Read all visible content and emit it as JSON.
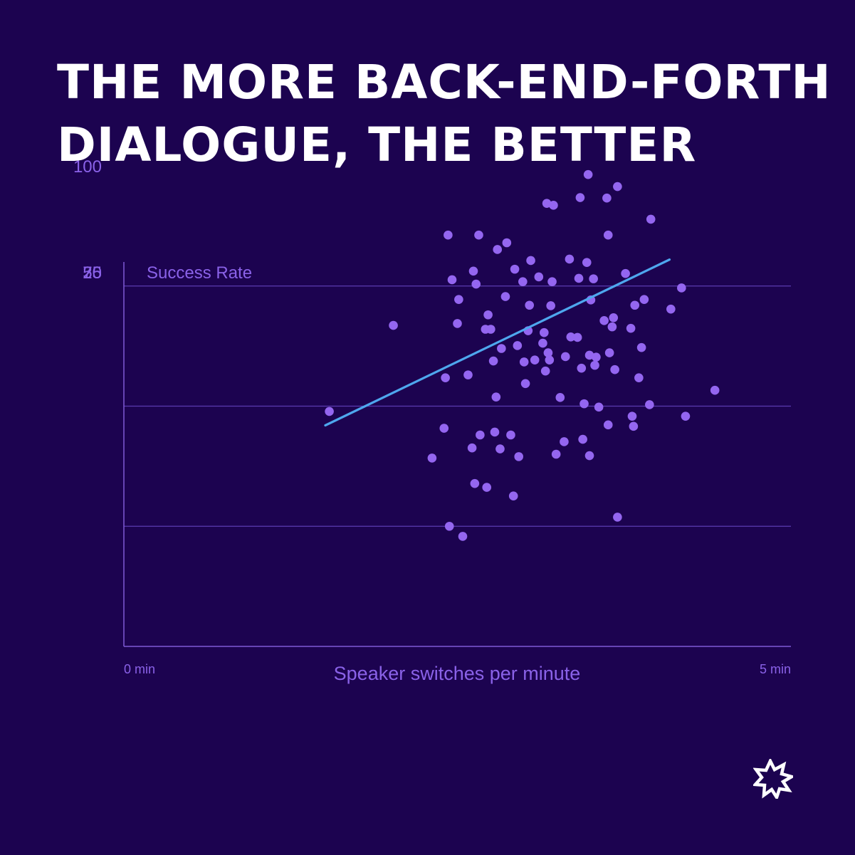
{
  "title_lines": [
    "THE MORE BACK-END-FORTH",
    "DIALOGUE, THE BETTER"
  ],
  "logo_icon": "starburst-logo-icon",
  "colors": {
    "background": "#1c0350",
    "title": "#ffffff",
    "axis": "#7e5ad6",
    "grid": "#5a3bb0",
    "label": "#8a62e8",
    "point": "#9466f0",
    "trend": "#4ea7ee"
  },
  "chart_data": {
    "type": "scatter",
    "title": "",
    "xlabel": "Speaker switches per minute",
    "ylabel": "Success Rate",
    "x_tick_labels": [
      "0 min",
      "5 min"
    ],
    "xlim": [
      0,
      5
    ],
    "ylim": [
      0,
      100
    ],
    "y_ticks": [
      25,
      50,
      75,
      100
    ],
    "grid": "horizontal at 25, 50, 75",
    "points": [
      {
        "x": 1.54,
        "y": 48.9
      },
      {
        "x": 2.02,
        "y": 66.8
      },
      {
        "x": 2.31,
        "y": 39.2
      },
      {
        "x": 2.4,
        "y": 45.4
      },
      {
        "x": 2.41,
        "y": 55.9
      },
      {
        "x": 2.43,
        "y": 85.6
      },
      {
        "x": 2.44,
        "y": 25.0
      },
      {
        "x": 2.46,
        "y": 76.3
      },
      {
        "x": 2.5,
        "y": 67.2
      },
      {
        "x": 2.51,
        "y": 72.2
      },
      {
        "x": 2.54,
        "y": 22.9
      },
      {
        "x": 2.58,
        "y": 56.5
      },
      {
        "x": 2.61,
        "y": 41.3
      },
      {
        "x": 2.62,
        "y": 78.1
      },
      {
        "x": 2.63,
        "y": 33.9
      },
      {
        "x": 2.64,
        "y": 75.4
      },
      {
        "x": 2.66,
        "y": 85.6
      },
      {
        "x": 2.67,
        "y": 44.0
      },
      {
        "x": 2.71,
        "y": 66.0
      },
      {
        "x": 2.72,
        "y": 33.1
      },
      {
        "x": 2.73,
        "y": 69.0
      },
      {
        "x": 2.75,
        "y": 66.0
      },
      {
        "x": 2.77,
        "y": 59.4
      },
      {
        "x": 2.78,
        "y": 44.6
      },
      {
        "x": 2.79,
        "y": 51.9
      },
      {
        "x": 2.8,
        "y": 82.6
      },
      {
        "x": 2.82,
        "y": 41.1
      },
      {
        "x": 2.83,
        "y": 62.0
      },
      {
        "x": 2.86,
        "y": 72.8
      },
      {
        "x": 2.87,
        "y": 84.0
      },
      {
        "x": 2.9,
        "y": 44.0
      },
      {
        "x": 2.92,
        "y": 31.3
      },
      {
        "x": 2.93,
        "y": 78.5
      },
      {
        "x": 2.95,
        "y": 62.6
      },
      {
        "x": 2.96,
        "y": 39.5
      },
      {
        "x": 2.99,
        "y": 75.9
      },
      {
        "x": 3.0,
        "y": 59.2
      },
      {
        "x": 3.01,
        "y": 54.7
      },
      {
        "x": 3.03,
        "y": 65.7
      },
      {
        "x": 3.04,
        "y": 71.0
      },
      {
        "x": 3.05,
        "y": 80.3
      },
      {
        "x": 3.08,
        "y": 59.6
      },
      {
        "x": 3.11,
        "y": 76.9
      },
      {
        "x": 3.14,
        "y": 63.1
      },
      {
        "x": 3.15,
        "y": 65.3
      },
      {
        "x": 3.16,
        "y": 57.3
      },
      {
        "x": 3.17,
        "y": 92.2
      },
      {
        "x": 3.18,
        "y": 61.1
      },
      {
        "x": 3.19,
        "y": 59.6
      },
      {
        "x": 3.2,
        "y": 70.9
      },
      {
        "x": 3.21,
        "y": 75.9
      },
      {
        "x": 3.22,
        "y": 91.8
      },
      {
        "x": 3.24,
        "y": 40.0
      },
      {
        "x": 3.27,
        "y": 51.8
      },
      {
        "x": 3.3,
        "y": 42.6
      },
      {
        "x": 3.31,
        "y": 60.3
      },
      {
        "x": 3.34,
        "y": 80.6
      },
      {
        "x": 3.35,
        "y": 64.4
      },
      {
        "x": 3.4,
        "y": 64.3
      },
      {
        "x": 3.41,
        "y": 76.6
      },
      {
        "x": 3.42,
        "y": 93.4
      },
      {
        "x": 3.43,
        "y": 57.9
      },
      {
        "x": 3.44,
        "y": 43.1
      },
      {
        "x": 3.45,
        "y": 50.5
      },
      {
        "x": 3.47,
        "y": 79.9
      },
      {
        "x": 3.48,
        "y": 98.2
      },
      {
        "x": 3.49,
        "y": 60.6
      },
      {
        "x": 3.49,
        "y": 39.7
      },
      {
        "x": 3.5,
        "y": 72.1
      },
      {
        "x": 3.52,
        "y": 76.5
      },
      {
        "x": 3.53,
        "y": 58.5
      },
      {
        "x": 3.54,
        "y": 60.2
      },
      {
        "x": 3.56,
        "y": 49.8
      },
      {
        "x": 3.6,
        "y": 67.8
      },
      {
        "x": 3.62,
        "y": 93.3
      },
      {
        "x": 3.63,
        "y": 85.6
      },
      {
        "x": 3.63,
        "y": 46.1
      },
      {
        "x": 3.64,
        "y": 61.1
      },
      {
        "x": 3.66,
        "y": 66.5
      },
      {
        "x": 3.67,
        "y": 68.4
      },
      {
        "x": 3.68,
        "y": 57.6
      },
      {
        "x": 3.7,
        "y": 95.7
      },
      {
        "x": 3.7,
        "y": 26.9
      },
      {
        "x": 3.76,
        "y": 77.6
      },
      {
        "x": 3.8,
        "y": 66.2
      },
      {
        "x": 3.81,
        "y": 47.9
      },
      {
        "x": 3.82,
        "y": 45.8
      },
      {
        "x": 3.83,
        "y": 71.0
      },
      {
        "x": 3.86,
        "y": 55.9
      },
      {
        "x": 3.88,
        "y": 62.2
      },
      {
        "x": 3.9,
        "y": 72.2
      },
      {
        "x": 3.94,
        "y": 50.3
      },
      {
        "x": 3.95,
        "y": 88.9
      },
      {
        "x": 4.1,
        "y": 70.2
      },
      {
        "x": 4.18,
        "y": 74.6
      },
      {
        "x": 4.21,
        "y": 47.9
      },
      {
        "x": 4.43,
        "y": 53.3
      }
    ],
    "trend_line": {
      "x": [
        1.51,
        4.09
      ],
      "y": [
        46.0,
        80.5
      ]
    }
  }
}
